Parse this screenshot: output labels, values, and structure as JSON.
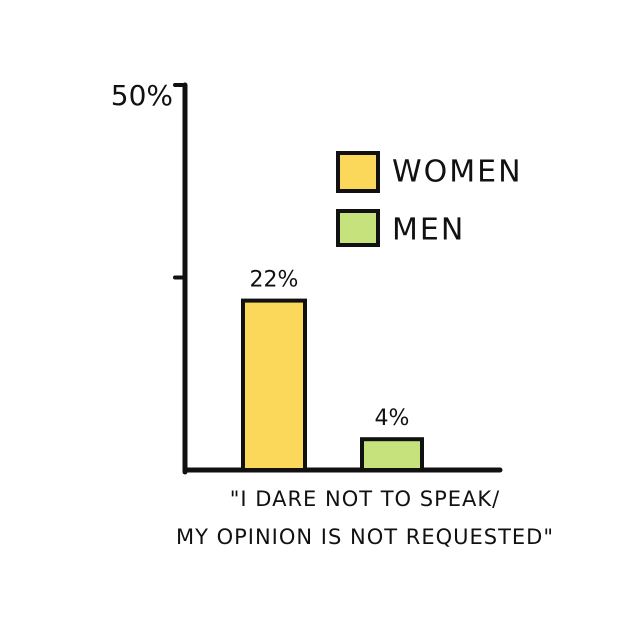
{
  "chart_data": {
    "type": "bar",
    "categories": [
      "\"I DARE NOT TO SPEAK/\nMY OPINION IS NOT REQUESTED\""
    ],
    "series": [
      {
        "name": "WOMEN",
        "color": "#fbd85a",
        "values": [
          22
        ],
        "value_labels": [
          "22%"
        ]
      },
      {
        "name": "MEN",
        "color": "#c6e27c",
        "values": [
          4
        ],
        "value_labels": [
          "4%"
        ]
      }
    ],
    "ylim": [
      0,
      50
    ],
    "yticks": [
      {
        "value": 25,
        "label": null
      },
      {
        "value": 50,
        "label": "50%"
      }
    ]
  }
}
